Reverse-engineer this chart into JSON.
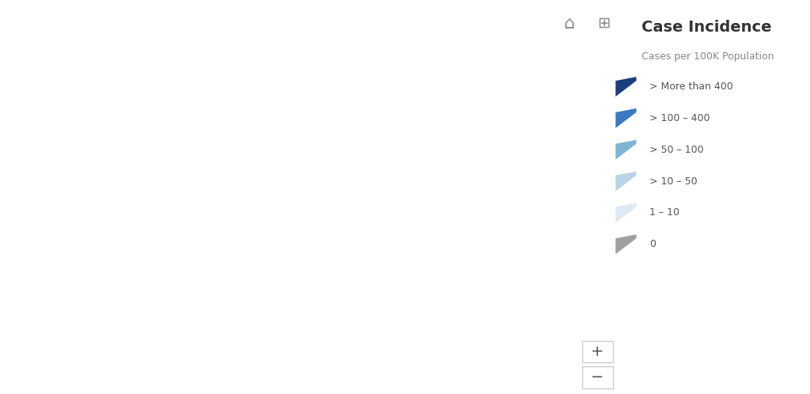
{
  "title": "Case Incidence",
  "subtitle": "Cases per 100K Population",
  "legend_labels": [
    "> More than 400",
    "> 100 – 400",
    "> 50 – 100",
    "> 10 – 50",
    "1 – 10",
    "0"
  ],
  "legend_colors": [
    "#1a3d7c",
    "#3a7abf",
    "#7eb5d6",
    "#b8d4e8",
    "#ddeaf5",
    "#a0a0a0"
  ],
  "background_color": "#ffffff",
  "province_colors": {
    "British Columbia": "#3a7abf",
    "Alberta": "#3a7abf",
    "Saskatchewan": "#7eb5d6",
    "Manitoba": "#3a7abf",
    "Ontario": "#1a3d7c",
    "Quebec": "#1a3d7c",
    "New Brunswick": "#3a7abf",
    "Nova Scotia": "#3a7abf",
    "Prince Edward Island": "#a0a0a0",
    "Newfoundland and Labrador": "#7eb5d6",
    "Yukon": "#7eb5d6",
    "Northwest Territories": "#a0a0a0",
    "Nunavut": "#a0a0a0"
  },
  "map_edge_color": "#ffffff",
  "map_linewidth": 0.5
}
